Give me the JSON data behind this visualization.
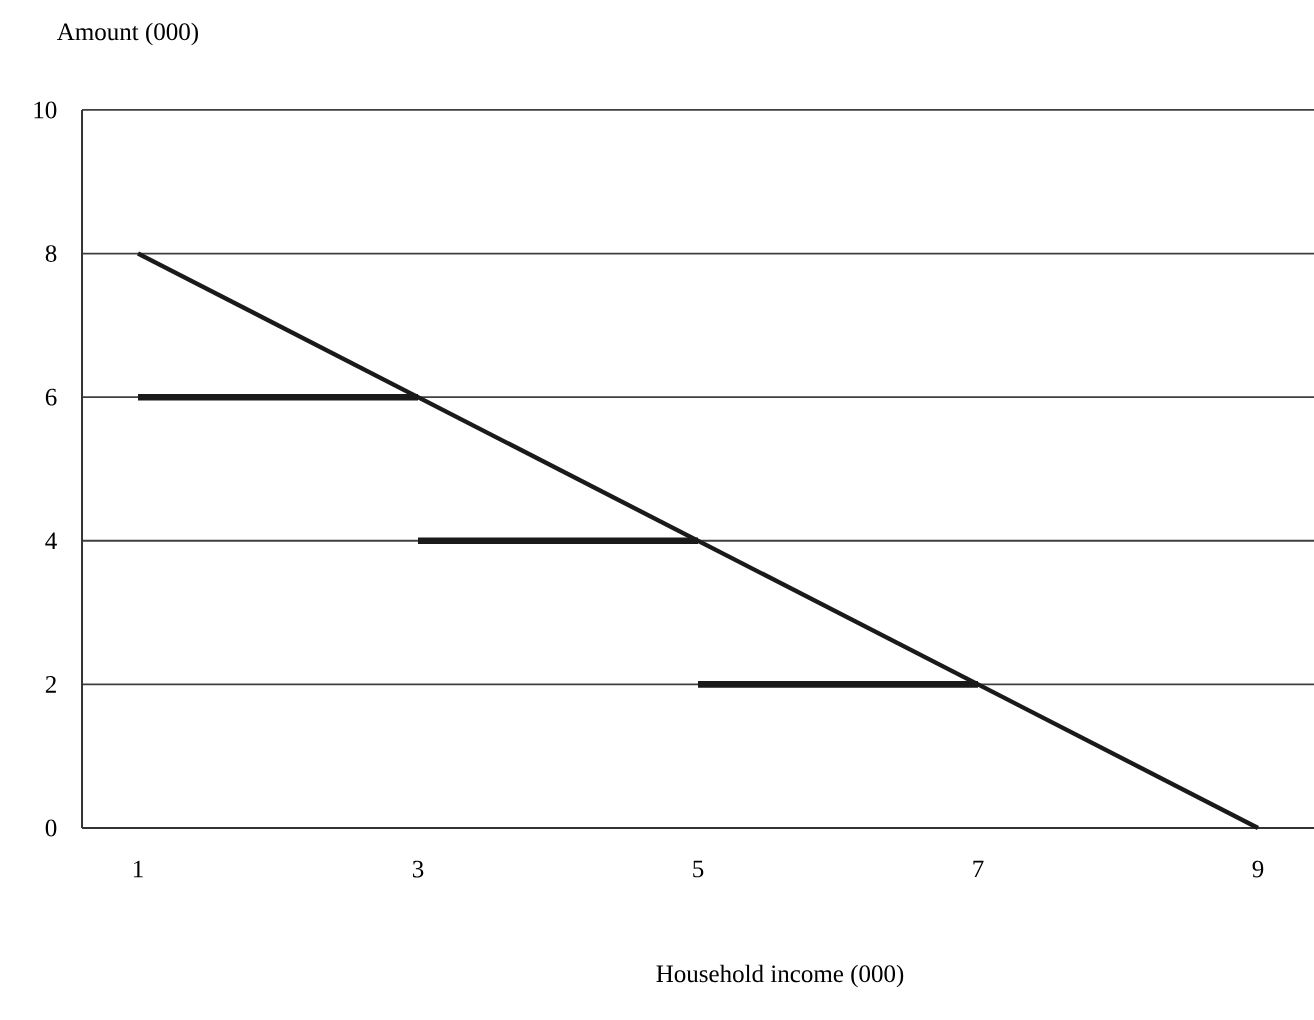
{
  "chart_data": {
    "type": "line",
    "ylabel": "Amount (000)",
    "xlabel": "Household income (000)",
    "xlim": [
      0.6,
      9.4
    ],
    "xticks": [
      1,
      3,
      5,
      7,
      9
    ],
    "ylim": [
      0,
      10
    ],
    "yticks": [
      0,
      2,
      4,
      6,
      8,
      10
    ],
    "grid": "y",
    "marker": "none",
    "line_style": "solid",
    "series": [
      {
        "color": "#1a1a1a",
        "x": [
          1,
          9
        ],
        "values": [
          8,
          0
        ]
      },
      {
        "color": "#1a1a1a",
        "x": [
          1,
          3
        ],
        "values": [
          6,
          6
        ]
      },
      {
        "color": "#1a1a1a",
        "x": [
          3,
          5
        ],
        "values": [
          4,
          4
        ]
      },
      {
        "color": "#1a1a1a",
        "x": [
          5,
          7
        ],
        "values": [
          2,
          2
        ]
      }
    ]
  }
}
